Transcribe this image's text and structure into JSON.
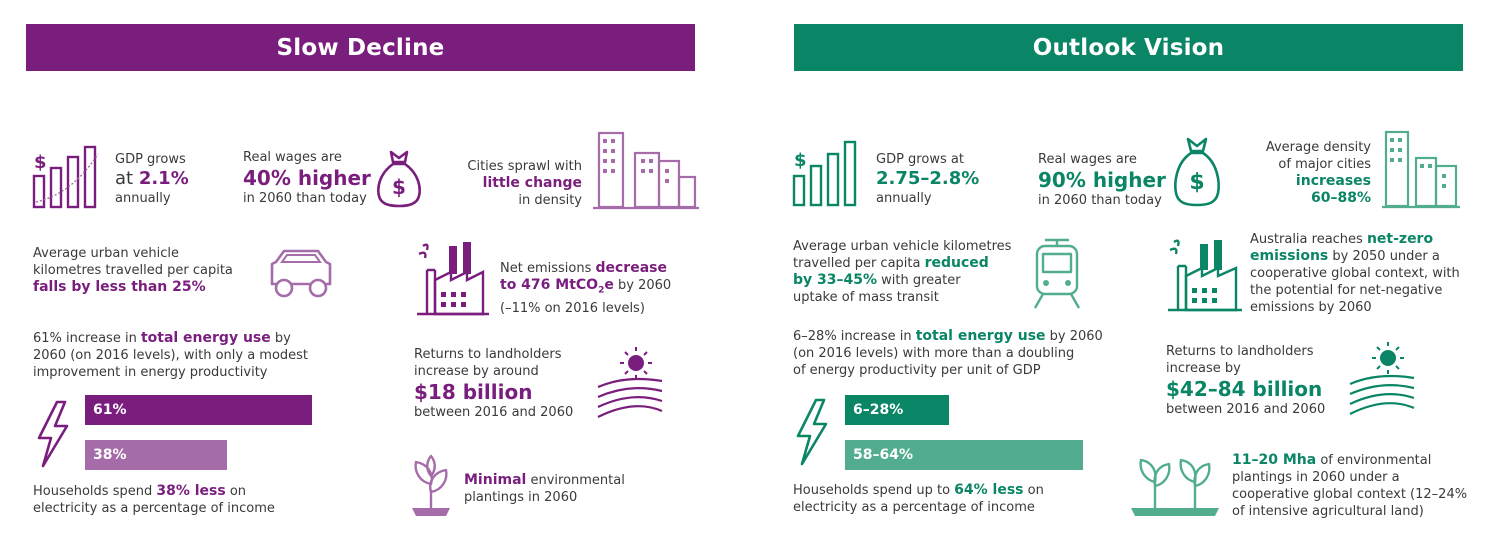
{
  "colors": {
    "purple": "#7a1e7e",
    "purple_light": "#a56ca9",
    "green": "#0a8566",
    "green_light": "#52ad90"
  },
  "left": {
    "title": "Slow Decline",
    "gdp": {
      "pre": "GDP grows",
      "at": "at ",
      "value": "2.1%",
      "post": "annually"
    },
    "wages": {
      "pre": "Real wages are",
      "value": "40% higher",
      "post": "in 2060 than today"
    },
    "cities": {
      "pre": "Cities sprawl with",
      "value": "little change",
      "post": "in density"
    },
    "vkt": {
      "l1": "Average urban vehicle",
      "l2": "kilometres travelled per capita",
      "value": "falls by less than 25%"
    },
    "emissions": {
      "pre": "Net emissions ",
      "value1": "decrease",
      "value2": "to 476 MtCO",
      "sub": "2",
      "value3": "e",
      "post1": " by 2060",
      "post2": "(–11% on 2016 levels)"
    },
    "energy": {
      "pre": "61% increase in ",
      "value": "total energy use",
      "post": " by",
      "l2": "2060 (on 2016 levels), with only a modest",
      "l3": "improvement in energy productivity"
    },
    "returns": {
      "l1": "Returns to landholders",
      "l2": "increase by around",
      "value": "$18 billion",
      "post": "between 2016 and 2060"
    },
    "bars": {
      "bar1": "61%",
      "bar2": "38%",
      "bar1_fraction": 0.61,
      "bar2_fraction": 0.38
    },
    "households": {
      "pre": "Households spend ",
      "value": "38% less",
      "post": " on",
      "l2": "electricity as a percentage of income"
    },
    "plantings": {
      "value": "Minimal",
      "post": " environmental",
      "l2": "plantings in 2060"
    }
  },
  "right": {
    "title": "Outlook Vision",
    "gdp": {
      "pre": "GDP grows at",
      "value": "2.75–2.8%",
      "post": "annually"
    },
    "wages": {
      "pre": "Real wages are",
      "value": "90% higher",
      "post": "in 2060 than today"
    },
    "cities": {
      "l1": "Average density",
      "l2": "of major cities",
      "value1": "increases",
      "value2": "60–88%"
    },
    "vkt": {
      "l1": "Average urban vehicle kilometres",
      "l2pre": "travelled per capita ",
      "value1": "reduced",
      "value2": "by 33–45%",
      "post": " with greater",
      "l4": "uptake of mass transit"
    },
    "emissions": {
      "pre": "Australia reaches ",
      "value1": "net-zero",
      "value2": "emissions",
      "post": " by 2050 under a",
      "l3": "cooperative global context, with",
      "l4": "the potential for net-negative",
      "l5": "emissions by 2060"
    },
    "energy": {
      "pre": "6–28% increase in ",
      "value": "total energy use",
      "post": " by 2060",
      "l2": "(on 2016 levels) with more than a doubling",
      "l3": "of energy productivity per unit of GDP"
    },
    "returns": {
      "l1": "Returns to landholders",
      "l2": "increase by",
      "value": "$42–84 billion",
      "post": "between 2016 and 2060"
    },
    "bars": {
      "bar1": "6–28%",
      "bar2": "58–64%"
    },
    "households": {
      "pre": "Households spend up to ",
      "value": "64% less",
      "post": " on",
      "l2": "electricity as a percentage of income"
    },
    "plantings": {
      "value": "11–20 Mha",
      "post": " of environmental",
      "l2": "plantings in 2060 under a",
      "l3": "cooperative global context (12–24%",
      "l4": "of intensive agricultural land)"
    }
  }
}
